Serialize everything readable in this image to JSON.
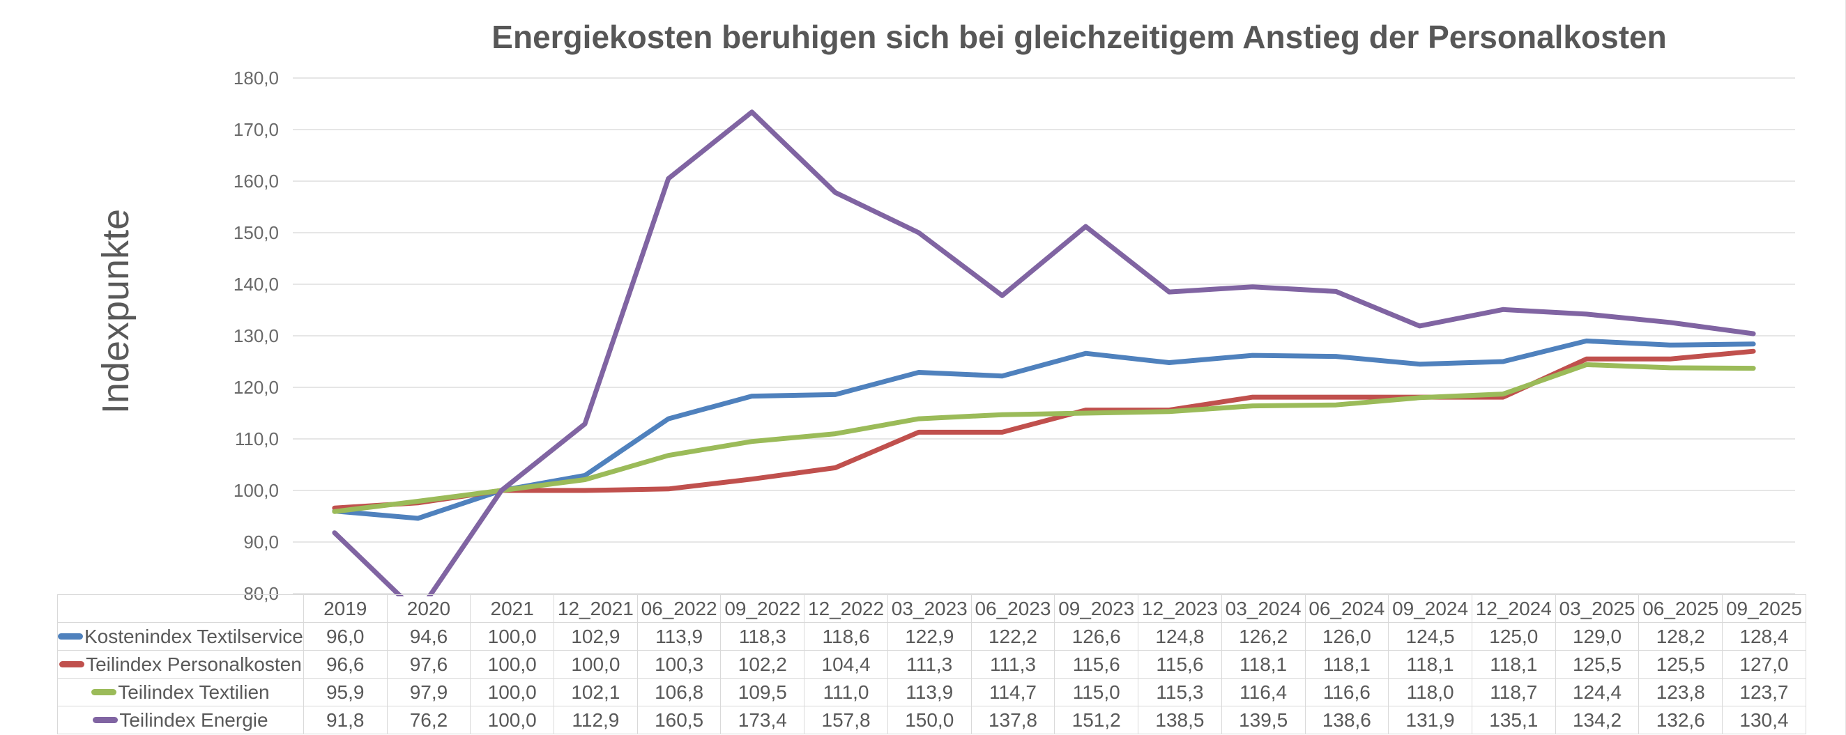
{
  "chart_data": {
    "type": "line",
    "title": "Energiekosten beruhigen sich bei gleichzeitigem Anstieg der Personalkosten",
    "xlabel": "",
    "ylabel": "Indexpunkte",
    "ylim": [
      80,
      180
    ],
    "yticks": [
      180,
      170,
      160,
      150,
      140,
      130,
      120,
      110,
      100,
      90,
      80
    ],
    "ytick_format": "one decimal, comma separator (e.g. 180,0)",
    "decimal_separator": ",",
    "grid": "horizontal-only",
    "legend_position": "table-left-column",
    "categories": [
      "2019",
      "2020",
      "2021",
      "12_2021",
      "06_2022",
      "09_2022",
      "12_2022",
      "03_2023",
      "06_2023",
      "09_2023",
      "12_2023",
      "03_2024",
      "06_2024",
      "09_2024",
      "12_2024",
      "03_2025",
      "06_2025",
      "09_2025"
    ],
    "series": [
      {
        "id": "kostenindex-textilservice",
        "name": "Kostenindex Textilservice",
        "color": "#4F81BD",
        "values": [
          96.0,
          94.6,
          100.0,
          102.9,
          113.9,
          118.3,
          118.6,
          122.9,
          122.2,
          126.6,
          124.8,
          126.2,
          126.0,
          124.5,
          125.0,
          129.0,
          128.2,
          128.4
        ]
      },
      {
        "id": "teilindex-personalkosten",
        "name": "Teilindex Personalkosten",
        "color": "#C0504D",
        "values": [
          96.6,
          97.6,
          100.0,
          100.0,
          100.3,
          102.2,
          104.4,
          111.3,
          111.3,
          115.6,
          115.6,
          118.1,
          118.1,
          118.1,
          118.1,
          125.5,
          125.5,
          127.0
        ]
      },
      {
        "id": "teilindex-textilien",
        "name": "Teilindex Textilien",
        "color": "#9BBB59",
        "values": [
          95.9,
          97.9,
          100.0,
          102.1,
          106.8,
          109.5,
          111.0,
          113.9,
          114.7,
          115.0,
          115.3,
          116.4,
          116.6,
          118.0,
          118.7,
          124.4,
          123.8,
          123.7
        ]
      },
      {
        "id": "teilindex-energie",
        "name": "Teilindex Energie",
        "color": "#8064A2",
        "values": [
          91.8,
          76.2,
          100.0,
          112.9,
          160.5,
          173.4,
          157.8,
          150.0,
          137.8,
          151.2,
          138.5,
          139.5,
          138.6,
          131.9,
          135.1,
          134.2,
          132.6,
          130.4
        ]
      }
    ]
  },
  "colors": {
    "text": "#595959",
    "title_text": "#575757",
    "gridline": "#dedede",
    "table_border": "#d9d9d9",
    "background": "#ffffff",
    "series_blue": "#4F81BD",
    "series_red": "#C0504D",
    "series_green": "#9BBB59",
    "series_purple": "#8064A2"
  }
}
